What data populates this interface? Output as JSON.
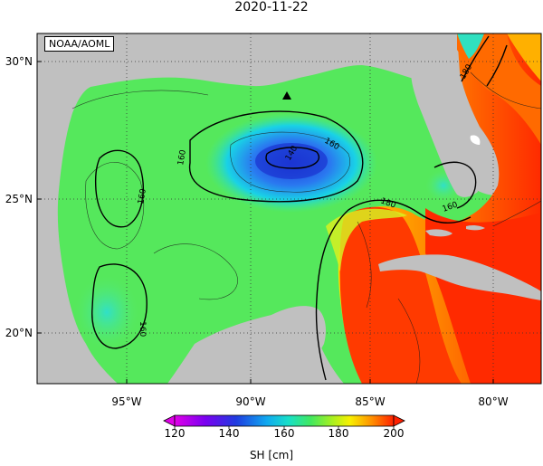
{
  "title": "2020-11-22",
  "credit": "NOAA/AOML",
  "lat_labels": [
    "30°N",
    "25°N",
    "20°N"
  ],
  "lon_labels": [
    "95°W",
    "90°W",
    "85°W",
    "80°W"
  ],
  "colorbar": {
    "ticks": [
      "120",
      "140",
      "160",
      "180",
      "200"
    ],
    "label": "SH [cm]",
    "min": 120,
    "max": 200
  },
  "contour_labels": [
    "140",
    "160",
    "160",
    "160",
    "160",
    "180",
    "160",
    "180"
  ],
  "colors": {
    "land": "#c0c0c0",
    "background": "#ffffff"
  }
}
